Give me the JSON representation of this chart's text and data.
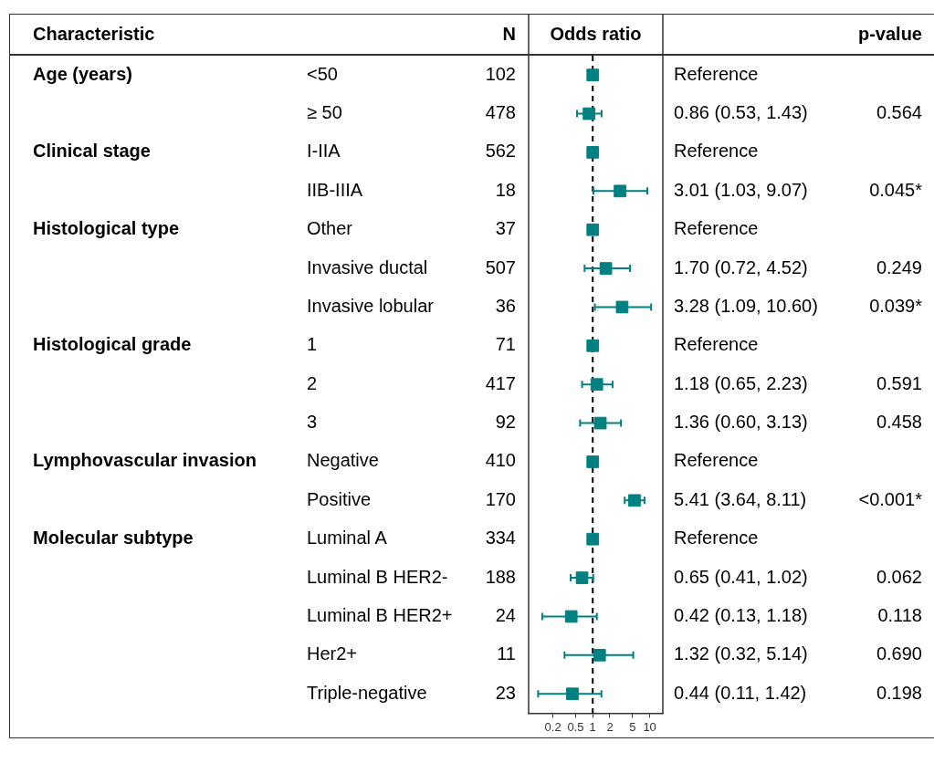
{
  "chart_data": {
    "type": "scatter",
    "orientation": "horizontal",
    "xlabel": "Odds ratio",
    "log": "x",
    "xlim": [
      0.075,
      17
    ],
    "xticks": [
      0.2,
      0.5,
      1,
      2,
      5,
      10
    ],
    "grid": false,
    "legend": false,
    "marker": "square",
    "tick_labels": "x",
    "categories": [
      "<50",
      "≥ 50",
      "I-IIA",
      "IIB-IIIA",
      "Other",
      "Invasive ductal",
      "Invasive lobular",
      "1",
      "2",
      "3",
      "Negative",
      "Positive",
      "Luminal A",
      "Luminal B HER2-",
      "Luminal B HER2+",
      "Her2+",
      "Triple-negative"
    ],
    "series": [
      {
        "color": "#008080",
        "values": [
          1,
          0.86,
          1,
          3.01,
          1,
          1.7,
          3.28,
          1,
          1.18,
          1.36,
          1,
          5.41,
          1,
          0.65,
          0.42,
          1.32,
          0.44
        ],
        "errors": [
          null,
          [
            0.53,
            1.43
          ],
          null,
          [
            1.03,
            9.07
          ],
          null,
          [
            0.72,
            4.52
          ],
          [
            1.09,
            10.6
          ],
          null,
          [
            0.65,
            2.23
          ],
          [
            0.6,
            3.13
          ],
          null,
          [
            3.64,
            8.11
          ],
          null,
          [
            0.41,
            1.02
          ],
          [
            0.13,
            1.18
          ],
          [
            0.32,
            5.14
          ],
          [
            0.11,
            1.42
          ]
        ]
      }
    ],
    "ref_lines": [
      {
        "axis": "x",
        "value": 1,
        "line_style": "dashed",
        "color": "#000000"
      }
    ],
    "annotations": [
      "Characteristic",
      "N",
      "p-value",
      "Age (years)",
      "Clinical stage",
      "Histological type",
      "Histological grade",
      "Lymphovascular invasion",
      "Molecular subtype",
      "102",
      "478",
      "562",
      "18",
      "37",
      "507",
      "36",
      "71",
      "417",
      "92",
      "410",
      "170",
      "334",
      "188",
      "24",
      "11",
      "23",
      "Reference",
      "0.86 (0.53, 1.43)",
      "Reference",
      "3.01 (1.03, 9.07)",
      "Reference",
      "1.70 (0.72, 4.52)",
      "3.28 (1.09, 10.60)",
      "Reference",
      "1.18 (0.65, 2.23)",
      "1.36 (0.60, 3.13)",
      "Reference",
      "5.41 (3.64, 8.11)",
      "Reference",
      "0.65 (0.41, 1.02)",
      "0.42 (0.13, 1.18)",
      "1.32 (0.32, 5.14)",
      "0.44 (0.11, 1.42)",
      "0.564",
      "0.045*",
      "0.249",
      "0.039*",
      "0.591",
      "0.458",
      "<0.001*",
      "0.062",
      "0.118",
      "0.690",
      "0.198"
    ]
  }
}
